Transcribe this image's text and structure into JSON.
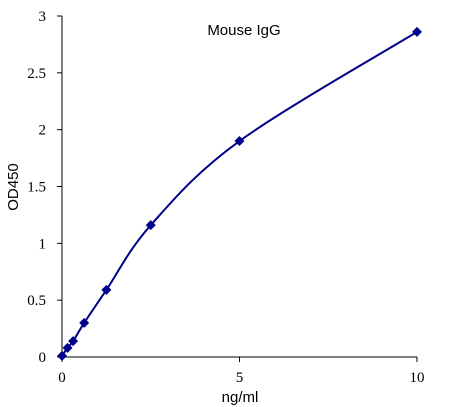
{
  "chart_data": {
    "type": "scatter",
    "title": "Mouse IgG",
    "xlabel": "ng/ml",
    "ylabel": "OD450",
    "xlim": [
      0,
      10
    ],
    "ylim": [
      0,
      3
    ],
    "x_ticks": [
      0,
      5,
      10
    ],
    "y_ticks": [
      0,
      0.5,
      1,
      1.5,
      2,
      2.5,
      3
    ],
    "x_tick_labels": [
      "0",
      "5",
      "10"
    ],
    "y_tick_labels": [
      "0",
      "0.5",
      "1",
      "1.5",
      "2",
      "2.5",
      "3"
    ],
    "grid": false,
    "line_color": "#00008B",
    "marker_color": "#00008B",
    "marker": "diamond",
    "fit": "smooth curve",
    "series": [
      {
        "x": [
          0,
          0.156,
          0.3125,
          0.625,
          1.25,
          2.5,
          5,
          10
        ],
        "y": [
          0.01,
          0.08,
          0.14,
          0.3,
          0.59,
          1.16,
          1.9,
          2.86
        ]
      }
    ]
  }
}
